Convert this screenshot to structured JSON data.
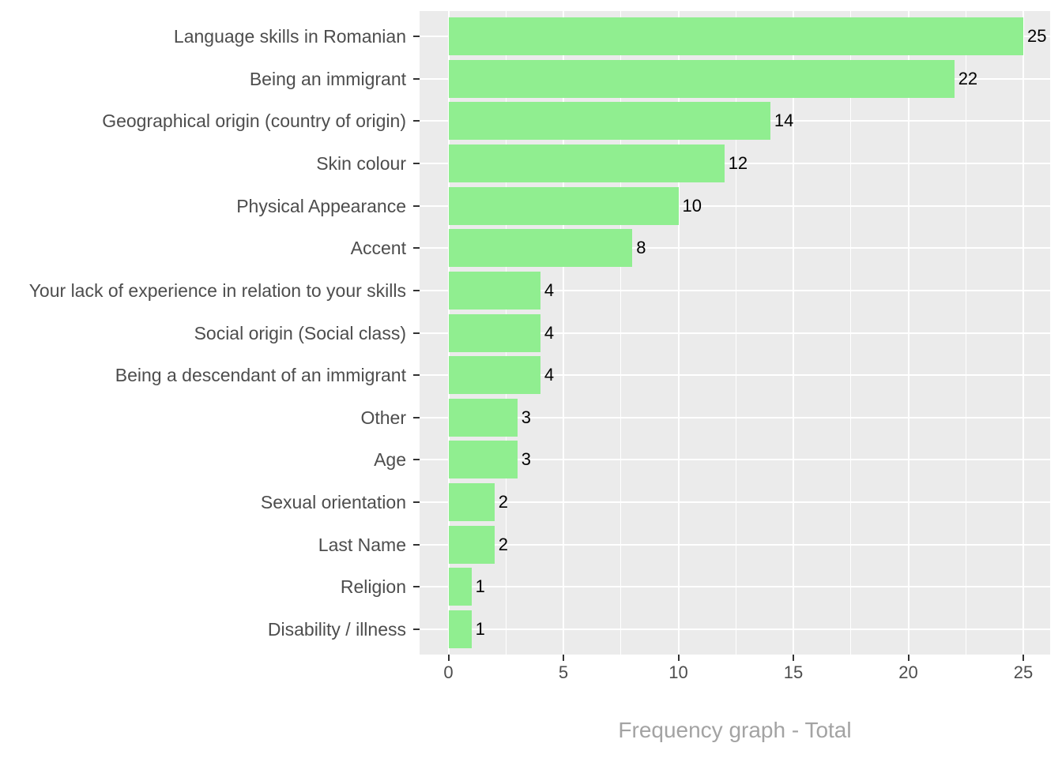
{
  "chart_data": {
    "type": "bar",
    "orientation": "horizontal",
    "title": "",
    "xlabel": "Frequency graph - Total",
    "ylabel": "",
    "categories": [
      "Language skills in Romanian",
      "Being an immigrant",
      "Geographical origin (country of origin)",
      "Skin colour",
      "Physical Appearance",
      "Accent",
      "Your lack of experience in relation to your skills",
      "Social origin (Social class)",
      "Being a descendant of an immigrant",
      "Other",
      "Age",
      "Sexual orientation",
      "Last Name",
      "Religion",
      "Disability / illness"
    ],
    "values": [
      25,
      22,
      14,
      12,
      10,
      8,
      4,
      4,
      4,
      3,
      3,
      2,
      2,
      1,
      1
    ],
    "bar_labels": [
      "25",
      "22",
      "14",
      "12",
      "10",
      "8",
      "4",
      "4",
      "4",
      "3",
      "3",
      "2",
      "2",
      "1",
      "1"
    ],
    "x_ticks": [
      0,
      5,
      10,
      15,
      20,
      25
    ],
    "x_tick_labels": [
      "0",
      "5",
      "10",
      "15",
      "20",
      "25"
    ],
    "x_minor_ticks": [
      2.5,
      7.5,
      12.5,
      17.5,
      22.5
    ],
    "xlim": [
      -1.29,
      26.17
    ],
    "grid": true,
    "legend": "none",
    "colors": {
      "bar_fill": "#90EE90",
      "panel_background": "#EBEBEB",
      "gridline": "#FFFFFF",
      "axis_text": "#4D4D4D",
      "value_label": "#000000",
      "axis_title": "#A3A3A3",
      "tick_mark": "#333333",
      "figure_background": "#FFFFFF"
    }
  }
}
